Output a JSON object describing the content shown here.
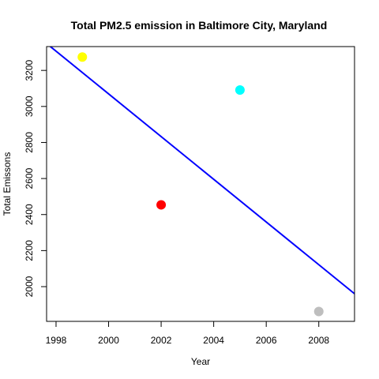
{
  "chart_data": {
    "type": "scatter",
    "title": "Total PM2.5 emission in Baltimore City, Maryland",
    "xlabel": "Year",
    "ylabel": "Total Emissons",
    "xlim": [
      1997.64,
      2009.36
    ],
    "ylim": [
      1807.3,
      3332.2
    ],
    "x_ticks": [
      1998,
      2000,
      2002,
      2004,
      2006,
      2008
    ],
    "y_ticks": [
      2000,
      2200,
      2400,
      2600,
      2800,
      3000,
      3200
    ],
    "points": [
      {
        "x": 1999,
        "y": 3274.2,
        "color": "#ffff00"
      },
      {
        "x": 2002,
        "y": 2453.9,
        "color": "#ff0000"
      },
      {
        "x": 2005,
        "y": 3091.4,
        "color": "#00ffff"
      },
      {
        "x": 2008,
        "y": 1862.3,
        "color": "#bebebe"
      }
    ],
    "trend_line": {
      "color": "#0000ff",
      "points": [
        {
          "x": 1997.64,
          "y": 3349.4
        },
        {
          "x": 2009.36,
          "y": 1960.6
        }
      ]
    },
    "grid": false,
    "legend": "none"
  }
}
